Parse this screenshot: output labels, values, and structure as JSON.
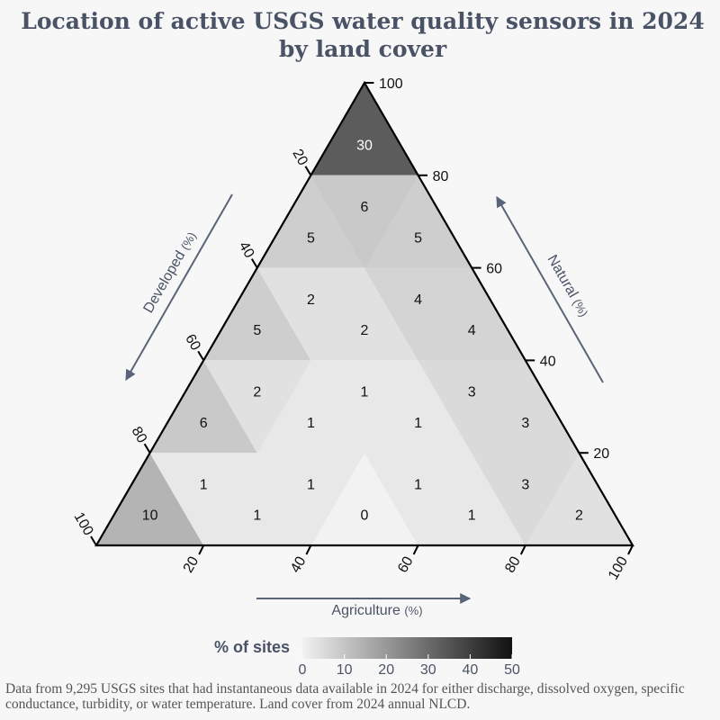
{
  "title_line1": "Location of active USGS water quality sensors in 2024",
  "title_line2": "by land cover",
  "caption": "Data from 9,295 USGS sites that had instantaneous data available in 2024 for either discharge, dissolved oxygen, specific conductance, turbidity, or water temperature. Land cover from 2024 annual NLCD.",
  "colors": {
    "text": "#4a5366",
    "arrow": "#5a6478",
    "background": "#f7f7f7"
  },
  "chart_data": {
    "type": "heatmap",
    "subtype": "ternary",
    "axes": {
      "agriculture": {
        "label": "Agriculture",
        "unit": "(%)",
        "ticks": [
          20,
          40,
          60,
          80,
          100
        ],
        "position": "bottom"
      },
      "natural": {
        "label": "Natural",
        "unit": "(%)",
        "ticks": [
          20,
          40,
          60,
          80,
          100
        ],
        "position": "right"
      },
      "developed": {
        "label": "Developed",
        "unit": "(%)",
        "ticks": [
          20,
          40,
          60,
          80,
          100
        ],
        "position": "left"
      }
    },
    "bin_size": 20,
    "cells": [
      {
        "natural": 80,
        "agriculture": 0,
        "developed": 0,
        "orient": "up",
        "value": 30
      },
      {
        "natural": 60,
        "agriculture": 0,
        "developed": 20,
        "orient": "up",
        "value": 5
      },
      {
        "natural": 60,
        "agriculture": 20,
        "developed": 0,
        "orient": "up",
        "value": 5
      },
      {
        "natural": 60,
        "agriculture": 0,
        "developed": 0,
        "orient": "down",
        "value": 6
      },
      {
        "natural": 40,
        "agriculture": 0,
        "developed": 40,
        "orient": "up",
        "value": 5
      },
      {
        "natural": 40,
        "agriculture": 20,
        "developed": 20,
        "orient": "up",
        "value": 2
      },
      {
        "natural": 40,
        "agriculture": 40,
        "developed": 0,
        "orient": "up",
        "value": 4
      },
      {
        "natural": 40,
        "agriculture": 0,
        "developed": 20,
        "orient": "down",
        "value": 2
      },
      {
        "natural": 40,
        "agriculture": 20,
        "developed": 0,
        "orient": "down",
        "value": 4
      },
      {
        "natural": 20,
        "agriculture": 0,
        "developed": 60,
        "orient": "up",
        "value": 6
      },
      {
        "natural": 20,
        "agriculture": 20,
        "developed": 40,
        "orient": "up",
        "value": 1
      },
      {
        "natural": 20,
        "agriculture": 40,
        "developed": 20,
        "orient": "up",
        "value": 1
      },
      {
        "natural": 20,
        "agriculture": 60,
        "developed": 0,
        "orient": "up",
        "value": 3
      },
      {
        "natural": 20,
        "agriculture": 0,
        "developed": 40,
        "orient": "down",
        "value": 2
      },
      {
        "natural": 20,
        "agriculture": 20,
        "developed": 20,
        "orient": "down",
        "value": 1
      },
      {
        "natural": 20,
        "agriculture": 40,
        "developed": 0,
        "orient": "down",
        "value": 3
      },
      {
        "natural": 0,
        "agriculture": 0,
        "developed": 80,
        "orient": "up",
        "value": 10
      },
      {
        "natural": 0,
        "agriculture": 20,
        "developed": 60,
        "orient": "up",
        "value": 1
      },
      {
        "natural": 0,
        "agriculture": 40,
        "developed": 40,
        "orient": "up",
        "value": 0
      },
      {
        "natural": 0,
        "agriculture": 60,
        "developed": 20,
        "orient": "up",
        "value": 1
      },
      {
        "natural": 0,
        "agriculture": 80,
        "developed": 0,
        "orient": "up",
        "value": 2
      },
      {
        "natural": 0,
        "agriculture": 0,
        "developed": 60,
        "orient": "down",
        "value": 1
      },
      {
        "natural": 0,
        "agriculture": 20,
        "developed": 40,
        "orient": "down",
        "value": 1
      },
      {
        "natural": 0,
        "agriculture": 40,
        "developed": 20,
        "orient": "down",
        "value": 1
      },
      {
        "natural": 0,
        "agriculture": 60,
        "developed": 0,
        "orient": "down",
        "value": 3
      }
    ],
    "legend": {
      "title": "% of sites",
      "range": [
        0,
        50
      ],
      "ticks": [
        0,
        10,
        20,
        30,
        40,
        50
      ],
      "color_low": "#f2f2f2",
      "color_high": "#111111"
    }
  }
}
